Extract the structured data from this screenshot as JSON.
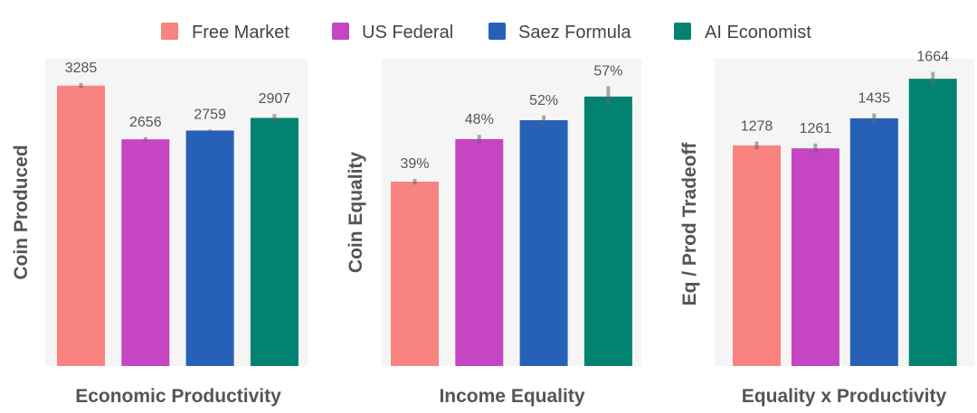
{
  "legend": {
    "entries": [
      {
        "label": "Free Market",
        "color": "#f8837f"
      },
      {
        "label": "US Federal",
        "color": "#c545c2"
      },
      {
        "label": "Saez Formula",
        "color": "#2761b7"
      },
      {
        "label": "AI Economist",
        "color": "#028372"
      }
    ]
  },
  "chart_data": [
    {
      "type": "bar",
      "categories": [
        "Free Market",
        "US Federal",
        "Saez Formula",
        "AI Economist"
      ],
      "values": [
        3285,
        2656,
        2759,
        2907
      ],
      "error": [
        30,
        25,
        12,
        45
      ],
      "data_labels": [
        "3285",
        "2656",
        "2759",
        "2907"
      ],
      "colors": [
        "#f8837f",
        "#c545c2",
        "#2761b7",
        "#028372"
      ],
      "ylabel": "Coin Produced",
      "xlabel": "Economic Productivity",
      "ylim": [
        0,
        3600
      ],
      "grid": false,
      "legend": "top"
    },
    {
      "type": "bar",
      "categories": [
        "Free Market",
        "US Federal",
        "Saez Formula",
        "AI Economist"
      ],
      "values": [
        39,
        48,
        52,
        57
      ],
      "error": [
        0.6,
        0.9,
        1.0,
        2.2
      ],
      "data_labels": [
        "39%",
        "48%",
        "52%",
        "57%"
      ],
      "colors": [
        "#f8837f",
        "#c545c2",
        "#2761b7",
        "#028372"
      ],
      "ylabel": "Coin Equality",
      "xlabel": "Income Equality",
      "ylim": [
        0,
        65
      ],
      "grid": false,
      "legend": "top"
    },
    {
      "type": "bar",
      "categories": [
        "Free Market",
        "US Federal",
        "Saez Formula",
        "AI Economist"
      ],
      "values": [
        1278,
        1261,
        1435,
        1664
      ],
      "error": [
        22,
        28,
        28,
        40
      ],
      "data_labels": [
        "1278",
        "1261",
        "1435",
        "1664"
      ],
      "colors": [
        "#f8837f",
        "#c545c2",
        "#2761b7",
        "#028372"
      ],
      "ylabel": "Eq / Prod Tradeoff",
      "xlabel": "Equality x Productivity",
      "ylim": [
        0,
        1780
      ],
      "grid": false,
      "legend": "top"
    }
  ]
}
